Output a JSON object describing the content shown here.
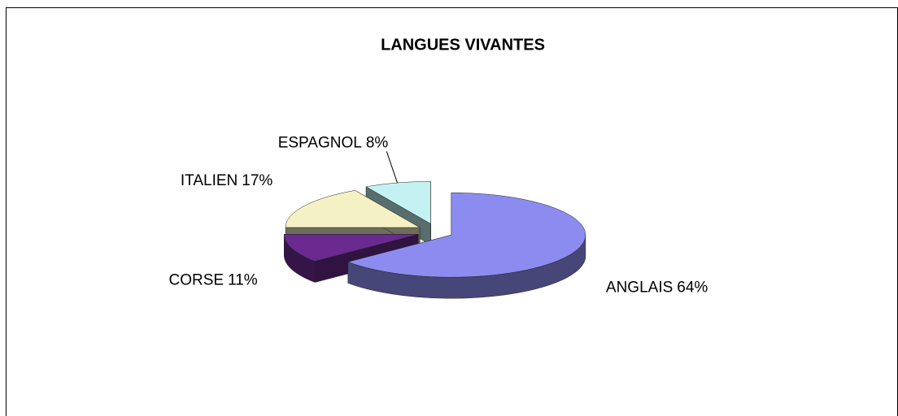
{
  "chart_data": {
    "type": "pie",
    "title": "LANGUES VIVANTES",
    "categories": [
      "ANGLAIS",
      "CORSE",
      "ITALIEN",
      "ESPAGNOL"
    ],
    "values": [
      64,
      11,
      17,
      8
    ],
    "value_labels": [
      "64%",
      "11%",
      "17%",
      "8%"
    ],
    "colors": [
      "#8c8cf0",
      "#6a2a90",
      "#f4f2c4",
      "#c4f2f2"
    ]
  }
}
